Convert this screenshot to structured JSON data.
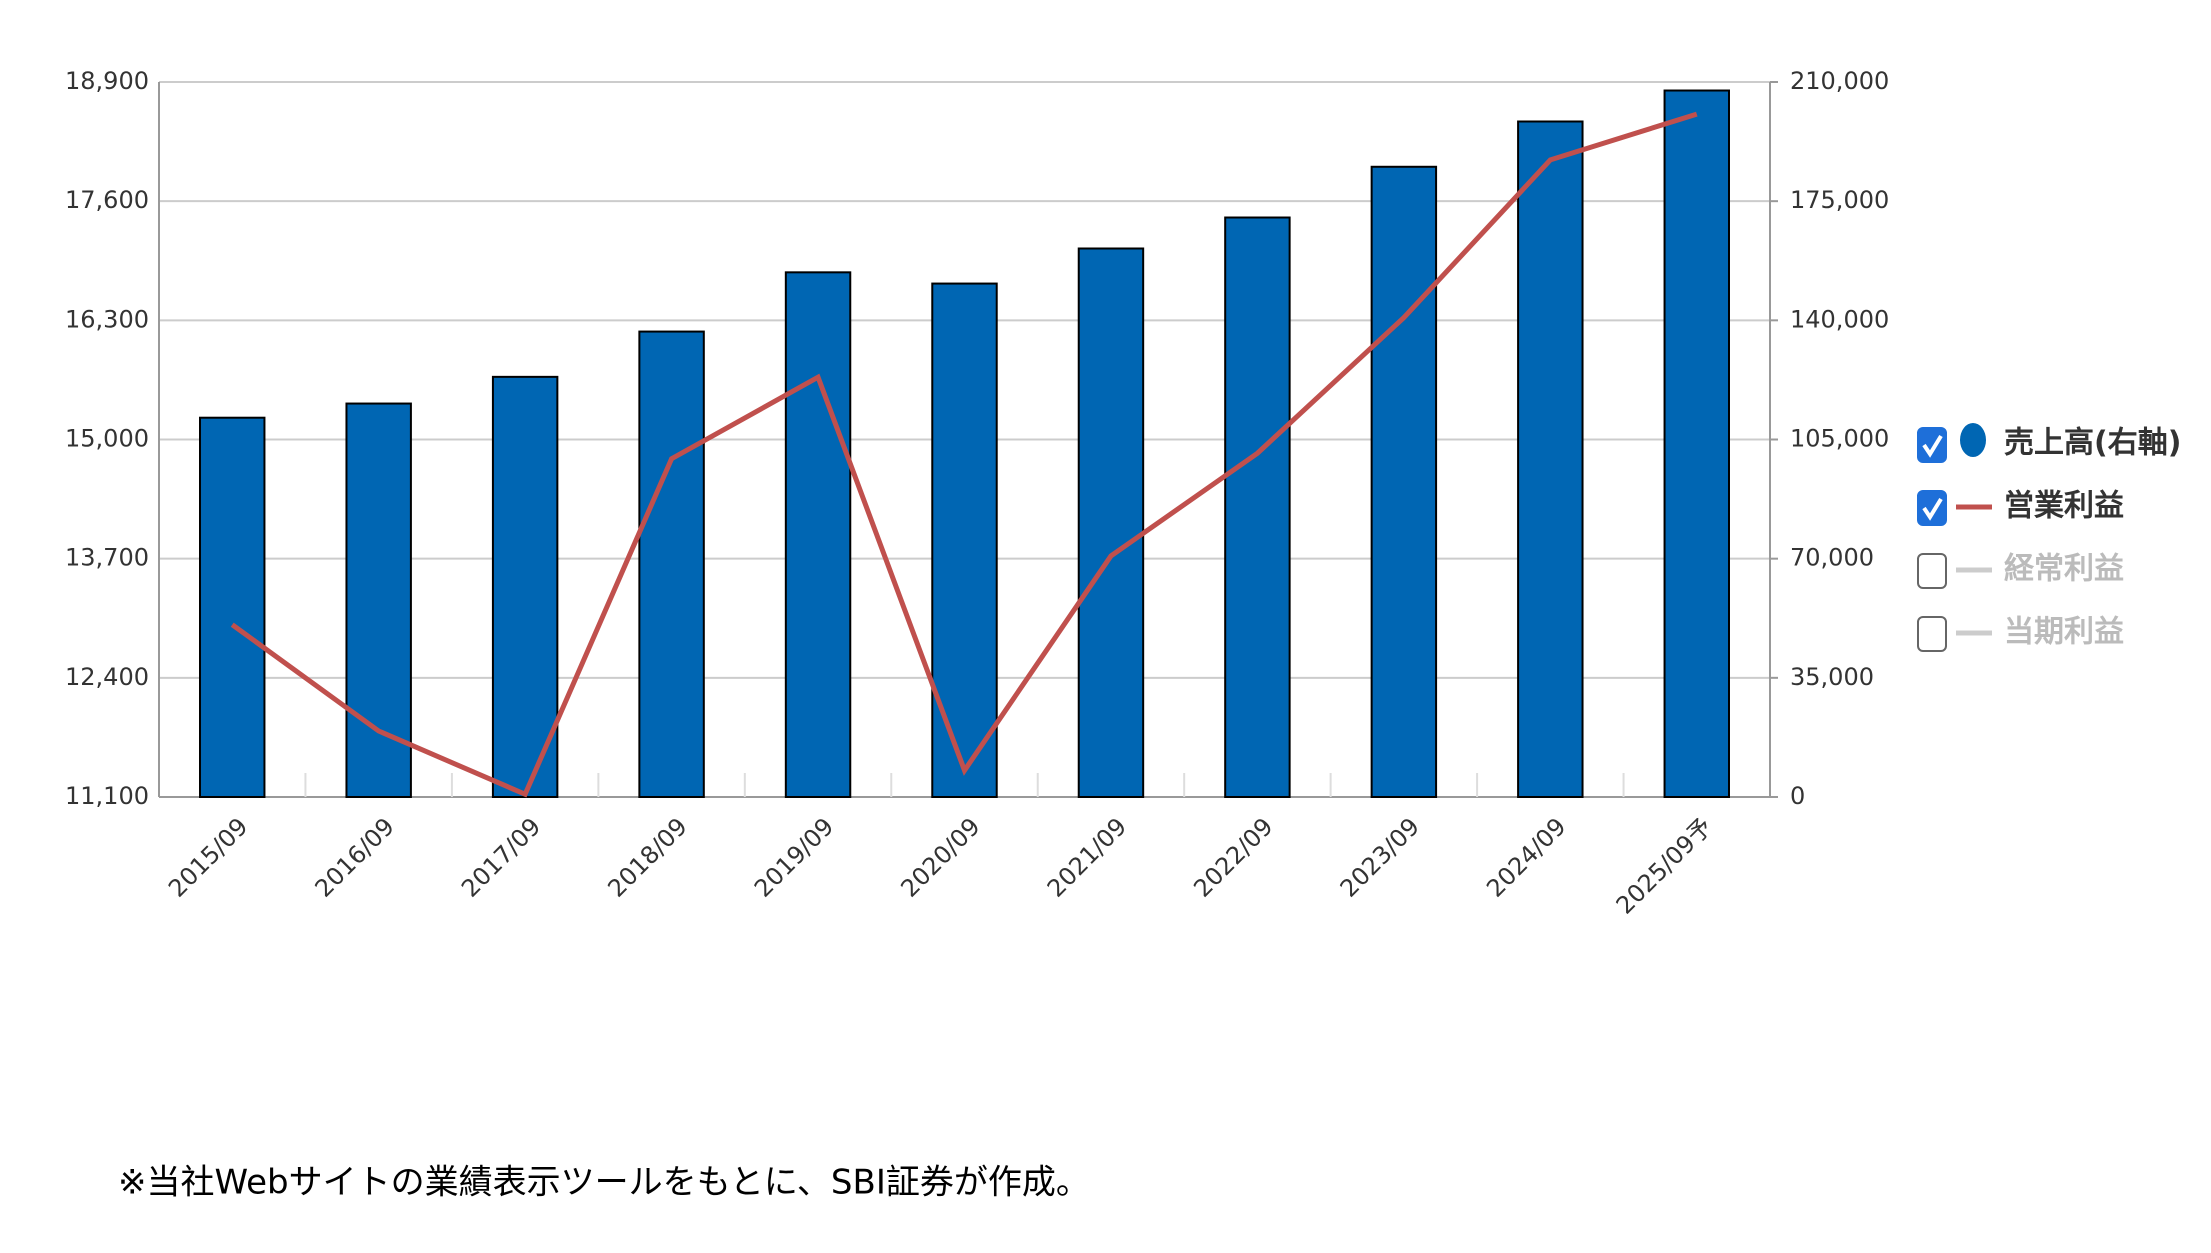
{
  "chart_data": {
    "type": "bar_line",
    "categories": [
      "2015/09",
      "2016/09",
      "2017/09",
      "2018/09",
      "2019/09",
      "2020/09",
      "2021/09",
      "2022/09",
      "2023/09",
      "2024/09",
      "2025/09予"
    ],
    "series": [
      {
        "name": "売上高(右軸)",
        "type": "bar",
        "axis": "y2",
        "color": "#0066b3",
        "values": [
          111400,
          115560,
          123400,
          136700,
          154100,
          150800,
          161100,
          170200,
          185100,
          198400,
          207500
        ]
      },
      {
        "name": "営業利益",
        "type": "line",
        "color": "#c0504d",
        "values": [
          12980,
          11820,
          11130,
          14790,
          15680,
          11390,
          13730,
          14850,
          16330,
          18050,
          18550
        ]
      }
    ],
    "hidden_series": [
      "経常利益",
      "当期利益"
    ],
    "ylim": [
      11100,
      18900
    ],
    "yticks": [
      {
        "value": 11100,
        "label": "11,100"
      },
      {
        "value": 12400,
        "label": "12,400"
      },
      {
        "value": 13700,
        "label": "13,700"
      },
      {
        "value": 15000,
        "label": "15,000"
      },
      {
        "value": 16300,
        "label": "16,300"
      },
      {
        "value": 17600,
        "label": "17,600"
      },
      {
        "value": 18900,
        "label": "18,900"
      }
    ],
    "y2lim": [
      0,
      210000
    ],
    "y2ticks": [
      0,
      {
        "value": 35000,
        "label": "35,000"
      },
      {
        "value": 70000,
        "label": "70,000"
      },
      {
        "value": 105000,
        "label": "105,000"
      },
      {
        "value": 140000,
        "label": "140,000"
      },
      {
        "value": 175000,
        "label": "175,000"
      },
      {
        "value": 210000,
        "label": "210,000"
      }
    ],
    "grid": true,
    "legend": "right",
    "note": "※当社Webサイトの業績表示ツールをもとに、SBI証券が作成。"
  }
}
